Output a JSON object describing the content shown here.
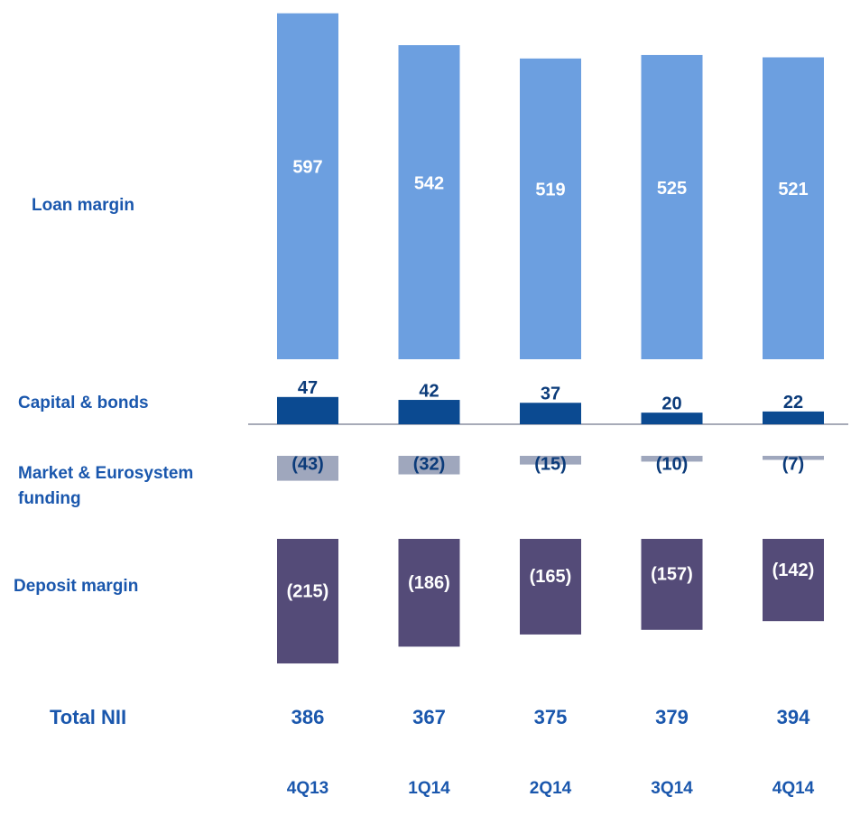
{
  "chart_data": {
    "type": "bar",
    "categories": [
      "4Q13",
      "1Q14",
      "2Q14",
      "3Q14",
      "4Q14"
    ],
    "series": [
      {
        "name": "Loan margin",
        "color": "#6c9fe0",
        "values": [
          597,
          542,
          519,
          525,
          521
        ]
      },
      {
        "name": "Capital & bonds",
        "color": "#0b4a91",
        "values": [
          47,
          42,
          37,
          20,
          22
        ]
      },
      {
        "name": "Market & Eurosystem funding",
        "color": "#9fa7bd",
        "values": [
          -43,
          -32,
          -15,
          -10,
          -7
        ],
        "value_labels": [
          "(43)",
          "(32)",
          "(15)",
          "(10)",
          "(7)"
        ]
      },
      {
        "name": "Deposit margin",
        "color": "#544b78",
        "values": [
          -215,
          -186,
          -165,
          -157,
          -142
        ],
        "value_labels": [
          "(215)",
          "(186)",
          "(165)",
          "(157)",
          "(142)"
        ]
      }
    ],
    "total": {
      "name": "Total NII",
      "values": [
        386,
        367,
        375,
        379,
        394
      ]
    }
  }
}
